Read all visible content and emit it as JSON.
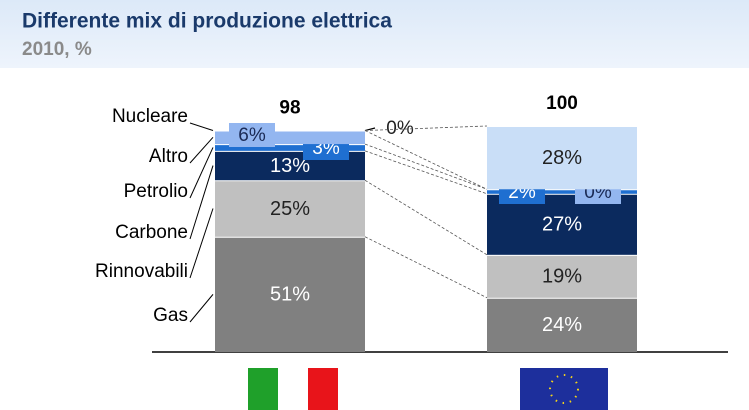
{
  "chart_data": {
    "type": "stacked_bar",
    "title": "Differente mix di produzione elettrica",
    "subtitle": "2010, %",
    "categories": [
      null,
      null
    ],
    "totals": [
      98,
      100
    ],
    "ylim": [
      0,
      100
    ],
    "series": [
      {
        "name": "Gas",
        "color": "#808080",
        "values": [
          51,
          24
        ],
        "value_labels": [
          "51%",
          "24%"
        ]
      },
      {
        "name": "Rinnovabili",
        "color": "#c0c0c0",
        "values": [
          25,
          19
        ],
        "value_labels": [
          "25%",
          "19%"
        ]
      },
      {
        "name": "Carbone",
        "color": "#0b2a5e",
        "values": [
          13,
          27
        ],
        "value_labels": [
          "13%",
          "27%"
        ]
      },
      {
        "name": "Petrolio",
        "color": "#1f6fd1",
        "values": [
          3,
          2
        ],
        "value_labels": [
          "3%",
          "2%"
        ]
      },
      {
        "name": "Altro",
        "color": "#93b6f0",
        "values": [
          6,
          0
        ],
        "value_labels": [
          "6%",
          "0%"
        ]
      },
      {
        "name": "Nucleare",
        "color": "#c9def7",
        "values": [
          0,
          28
        ],
        "value_labels": [
          "0%",
          "28%"
        ]
      }
    ]
  }
}
